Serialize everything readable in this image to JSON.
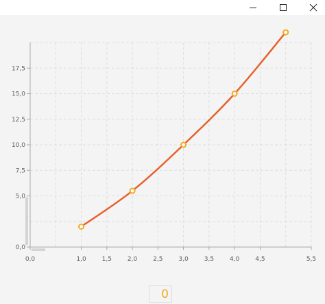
{
  "window": {
    "buttons": [
      {
        "name": "minimize-button",
        "icon": "minimize-icon"
      },
      {
        "name": "maximize-button",
        "icon": "maximize-icon"
      },
      {
        "name": "close-button",
        "icon": "close-icon"
      }
    ]
  },
  "chart_data": {
    "type": "line",
    "title": "",
    "xlabel": "",
    "ylabel": "",
    "xlim": [
      0,
      5.5
    ],
    "ylim": [
      0,
      20
    ],
    "x_ticks": [
      "0,0",
      "1,0",
      "1,5",
      "2,0",
      "2,5",
      "3,0",
      "3,5",
      "4,0",
      "4,5",
      "5,5"
    ],
    "x_tick_values": [
      0,
      1,
      1.5,
      2,
      2.5,
      3,
      3.5,
      4,
      4.5,
      5.5
    ],
    "y_ticks": [
      "0,0",
      "5,0",
      "7,5",
      "10,0",
      "12,5",
      "15,0",
      "17,5"
    ],
    "y_tick_values": [
      0,
      5,
      7.5,
      10,
      12.5,
      15,
      17.5
    ],
    "grid": true,
    "series": [
      {
        "x": [
          1,
          2,
          3,
          4,
          5
        ],
        "values": [
          2,
          5.5,
          10,
          15,
          21
        ],
        "line_color": "#e8602c",
        "marker_color": "#f3a820"
      }
    ]
  },
  "counter": {
    "value": "0"
  }
}
